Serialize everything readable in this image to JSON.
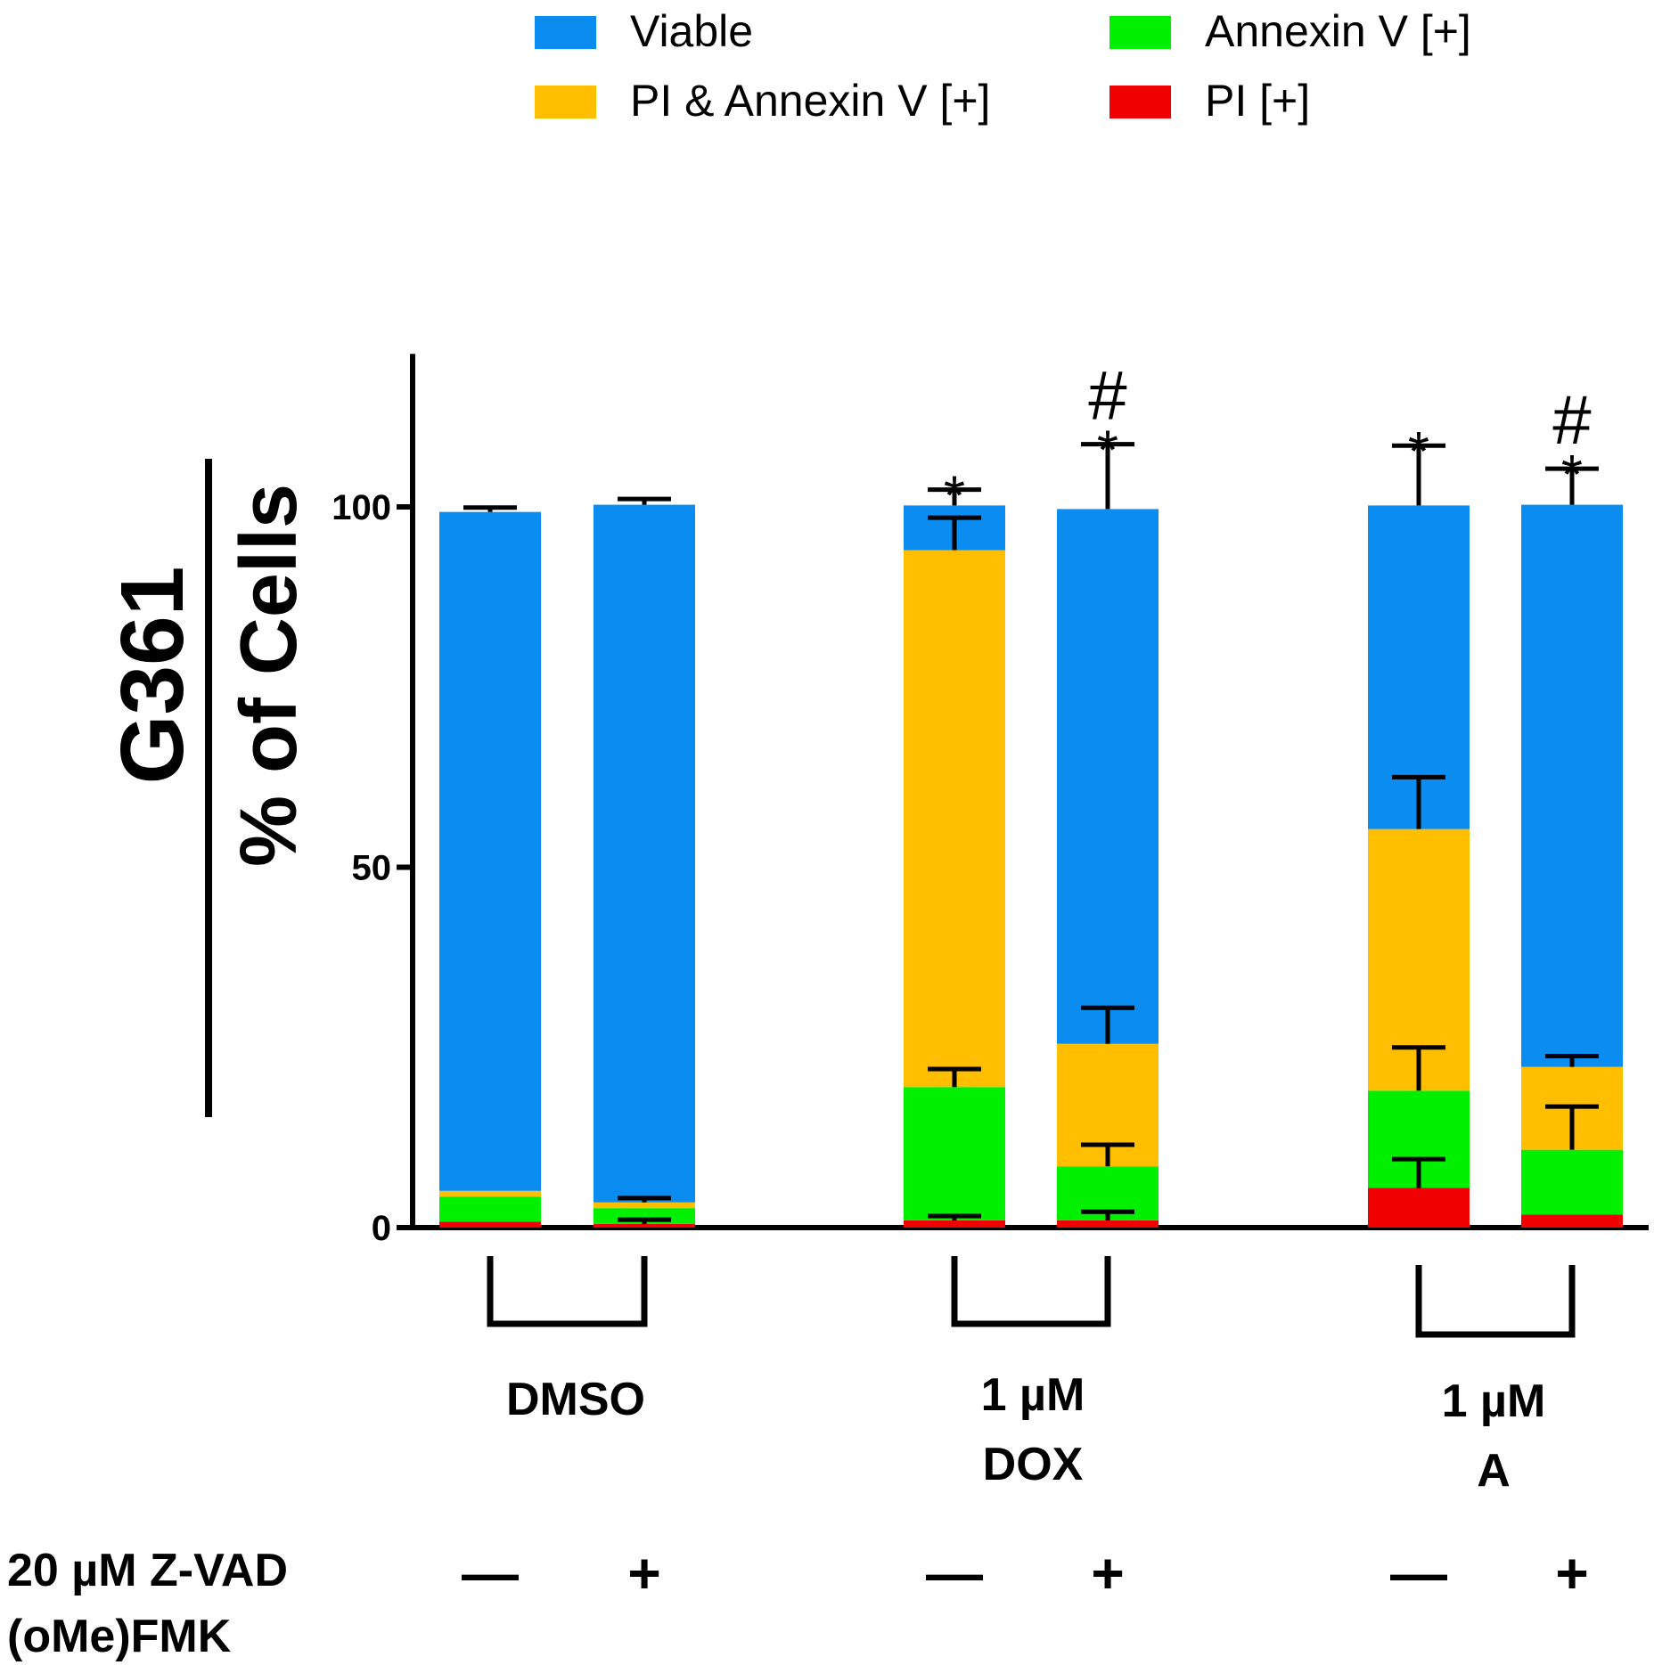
{
  "chart_data": {
    "type": "bar",
    "stacked": true,
    "title_line1": "G361",
    "ylabel": "% of Cells",
    "ylim": [
      0,
      120
    ],
    "y_ticks": [
      0,
      50,
      100
    ],
    "legend": [
      {
        "name": "Viable",
        "color": "#0a8cf0"
      },
      {
        "name": "Annexin V [+]",
        "color": "#00f000"
      },
      {
        "name": "PI & Annexin V [+]",
        "color": "#ffbe00"
      },
      {
        "name": "PI [+]",
        "color": "#f00000"
      }
    ],
    "groups": [
      {
        "label_lines": [
          "DMSO"
        ]
      },
      {
        "label_lines": [
          "1 µM",
          "DOX"
        ]
      },
      {
        "label_lines": [
          "1 µM",
          "A"
        ]
      }
    ],
    "treatment_label_lines": [
      "20 µM Z-VAD",
      "(oMe)FMK"
    ],
    "bars": [
      {
        "group": 0,
        "zvad": "—",
        "top_marks": [],
        "segments": [
          {
            "series": "PI [+]",
            "value": 0.8,
            "err": 0
          },
          {
            "series": "Annexin V [+]",
            "value": 3.5,
            "err": 0
          },
          {
            "series": "PI & Annexin V [+]",
            "value": 0.8,
            "err": 0
          },
          {
            "series": "Viable",
            "value": 94.2,
            "err": 0.6
          }
        ]
      },
      {
        "group": 0,
        "zvad": "+",
        "top_marks": [],
        "segments": [
          {
            "series": "PI [+]",
            "value": 0.5,
            "err": 0.6
          },
          {
            "series": "Annexin V [+]",
            "value": 2.2,
            "err": 0
          },
          {
            "series": "PI & Annexin V [+]",
            "value": 0.8,
            "err": 0.6
          },
          {
            "series": "Viable",
            "value": 96.8,
            "err": 0.8
          }
        ]
      },
      {
        "group": 1,
        "zvad": "—",
        "top_marks": [
          "*"
        ],
        "segments": [
          {
            "series": "PI [+]",
            "value": 1.0,
            "err": 0.6
          },
          {
            "series": "Annexin V [+]",
            "value": 18.5,
            "err": 2.5
          },
          {
            "series": "PI & Annexin V [+]",
            "value": 74.5,
            "err": 4.5
          },
          {
            "series": "Viable",
            "value": 6.2,
            "err": 2.2
          }
        ]
      },
      {
        "group": 1,
        "zvad": "+",
        "top_marks": [
          "*",
          "#"
        ],
        "segments": [
          {
            "series": "PI [+]",
            "value": 1.0,
            "err": 1.2
          },
          {
            "series": "Annexin V [+]",
            "value": 7.5,
            "err": 3.0
          },
          {
            "series": "PI & Annexin V [+]",
            "value": 17.0,
            "err": 5.0
          },
          {
            "series": "Viable",
            "value": 74.2,
            "err": 9.0
          }
        ]
      },
      {
        "group": 2,
        "zvad": "—",
        "top_marks": [
          "*"
        ],
        "segments": [
          {
            "series": "PI [+]",
            "value": 5.5,
            "err": 4.0
          },
          {
            "series": "Annexin V [+]",
            "value": 13.5,
            "err": 6.0
          },
          {
            "series": "PI & Annexin V [+]",
            "value": 36.3,
            "err": 7.2
          },
          {
            "series": "Viable",
            "value": 44.9,
            "err": 8.3
          }
        ]
      },
      {
        "group": 2,
        "zvad": "+",
        "top_marks": [
          "*",
          "#"
        ],
        "segments": [
          {
            "series": "PI [+]",
            "value": 1.8,
            "err": 0
          },
          {
            "series": "Annexin V [+]",
            "value": 9.0,
            "err": 6.0
          },
          {
            "series": "PI & Annexin V [+]",
            "value": 11.5,
            "err": 1.5
          },
          {
            "series": "Viable",
            "value": 78.0,
            "err": 5.0
          }
        ]
      }
    ]
  }
}
